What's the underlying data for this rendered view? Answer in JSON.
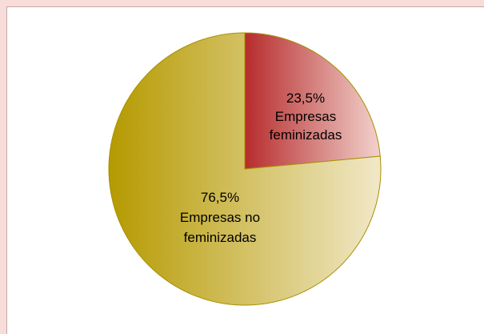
{
  "chart_data": {
    "type": "pie",
    "title": "",
    "slices": [
      {
        "label": "Empresas feminizadas",
        "value": 23.5,
        "value_label": "23,5%",
        "label_lines": [
          "Empresas",
          "feminizadas"
        ]
      },
      {
        "label": "Empresas no feminizadas",
        "value": 76.5,
        "value_label": "76,5%",
        "label_lines": [
          "Empresas no",
          "feminizadas"
        ]
      }
    ],
    "legend": "none"
  },
  "colors": {
    "background": "#f7dcd9",
    "frame_border": "#c8a6a2",
    "feminizadas_dark": "#b62c2c",
    "feminizadas_light": "#f2d2cd",
    "no_feminizadas_dark": "#b59a00",
    "no_feminizadas_light": "#f1e8c8",
    "slice_edge": "#a89000"
  }
}
